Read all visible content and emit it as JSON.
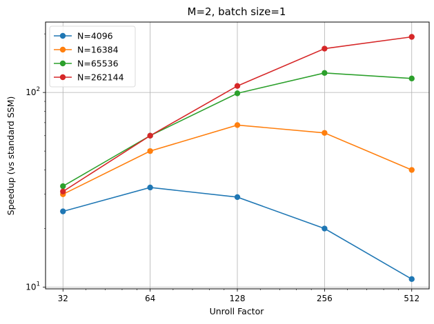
{
  "chart_data": {
    "type": "line",
    "title": "M=2, batch size=1",
    "xlabel": "Unroll Factor",
    "ylabel": "Speedup (vs standard SSM)",
    "x": [
      32,
      64,
      128,
      256,
      512
    ],
    "x_tick_labels": [
      "32",
      "64",
      "128",
      "256",
      "512"
    ],
    "xscale": "log2",
    "yscale": "log10",
    "ylim": [
      9.8,
      230
    ],
    "y_major_ticks": [
      10,
      100
    ],
    "y_tick_labels": [
      {
        "base": "10",
        "exp": "1"
      },
      {
        "base": "10",
        "exp": "2"
      }
    ],
    "y_minor_ticks": [
      20,
      30,
      40,
      50,
      60,
      70,
      80,
      90,
      200
    ],
    "grid": true,
    "legend_position": "top-left",
    "series": [
      {
        "name": "N=4096",
        "color": "#1f77b4",
        "values": [
          24.5,
          32.5,
          29.0,
          20.0,
          11.0
        ]
      },
      {
        "name": "N=16384",
        "color": "#ff7f0e",
        "values": [
          30.0,
          50.0,
          68.0,
          62.0,
          40.0
        ]
      },
      {
        "name": "N=65536",
        "color": "#2ca02c",
        "values": [
          33.0,
          60.0,
          99.0,
          126.0,
          118.0
        ]
      },
      {
        "name": "N=262144",
        "color": "#d62728",
        "values": [
          31.0,
          60.0,
          108.0,
          168.0,
          193.0
        ]
      }
    ]
  }
}
